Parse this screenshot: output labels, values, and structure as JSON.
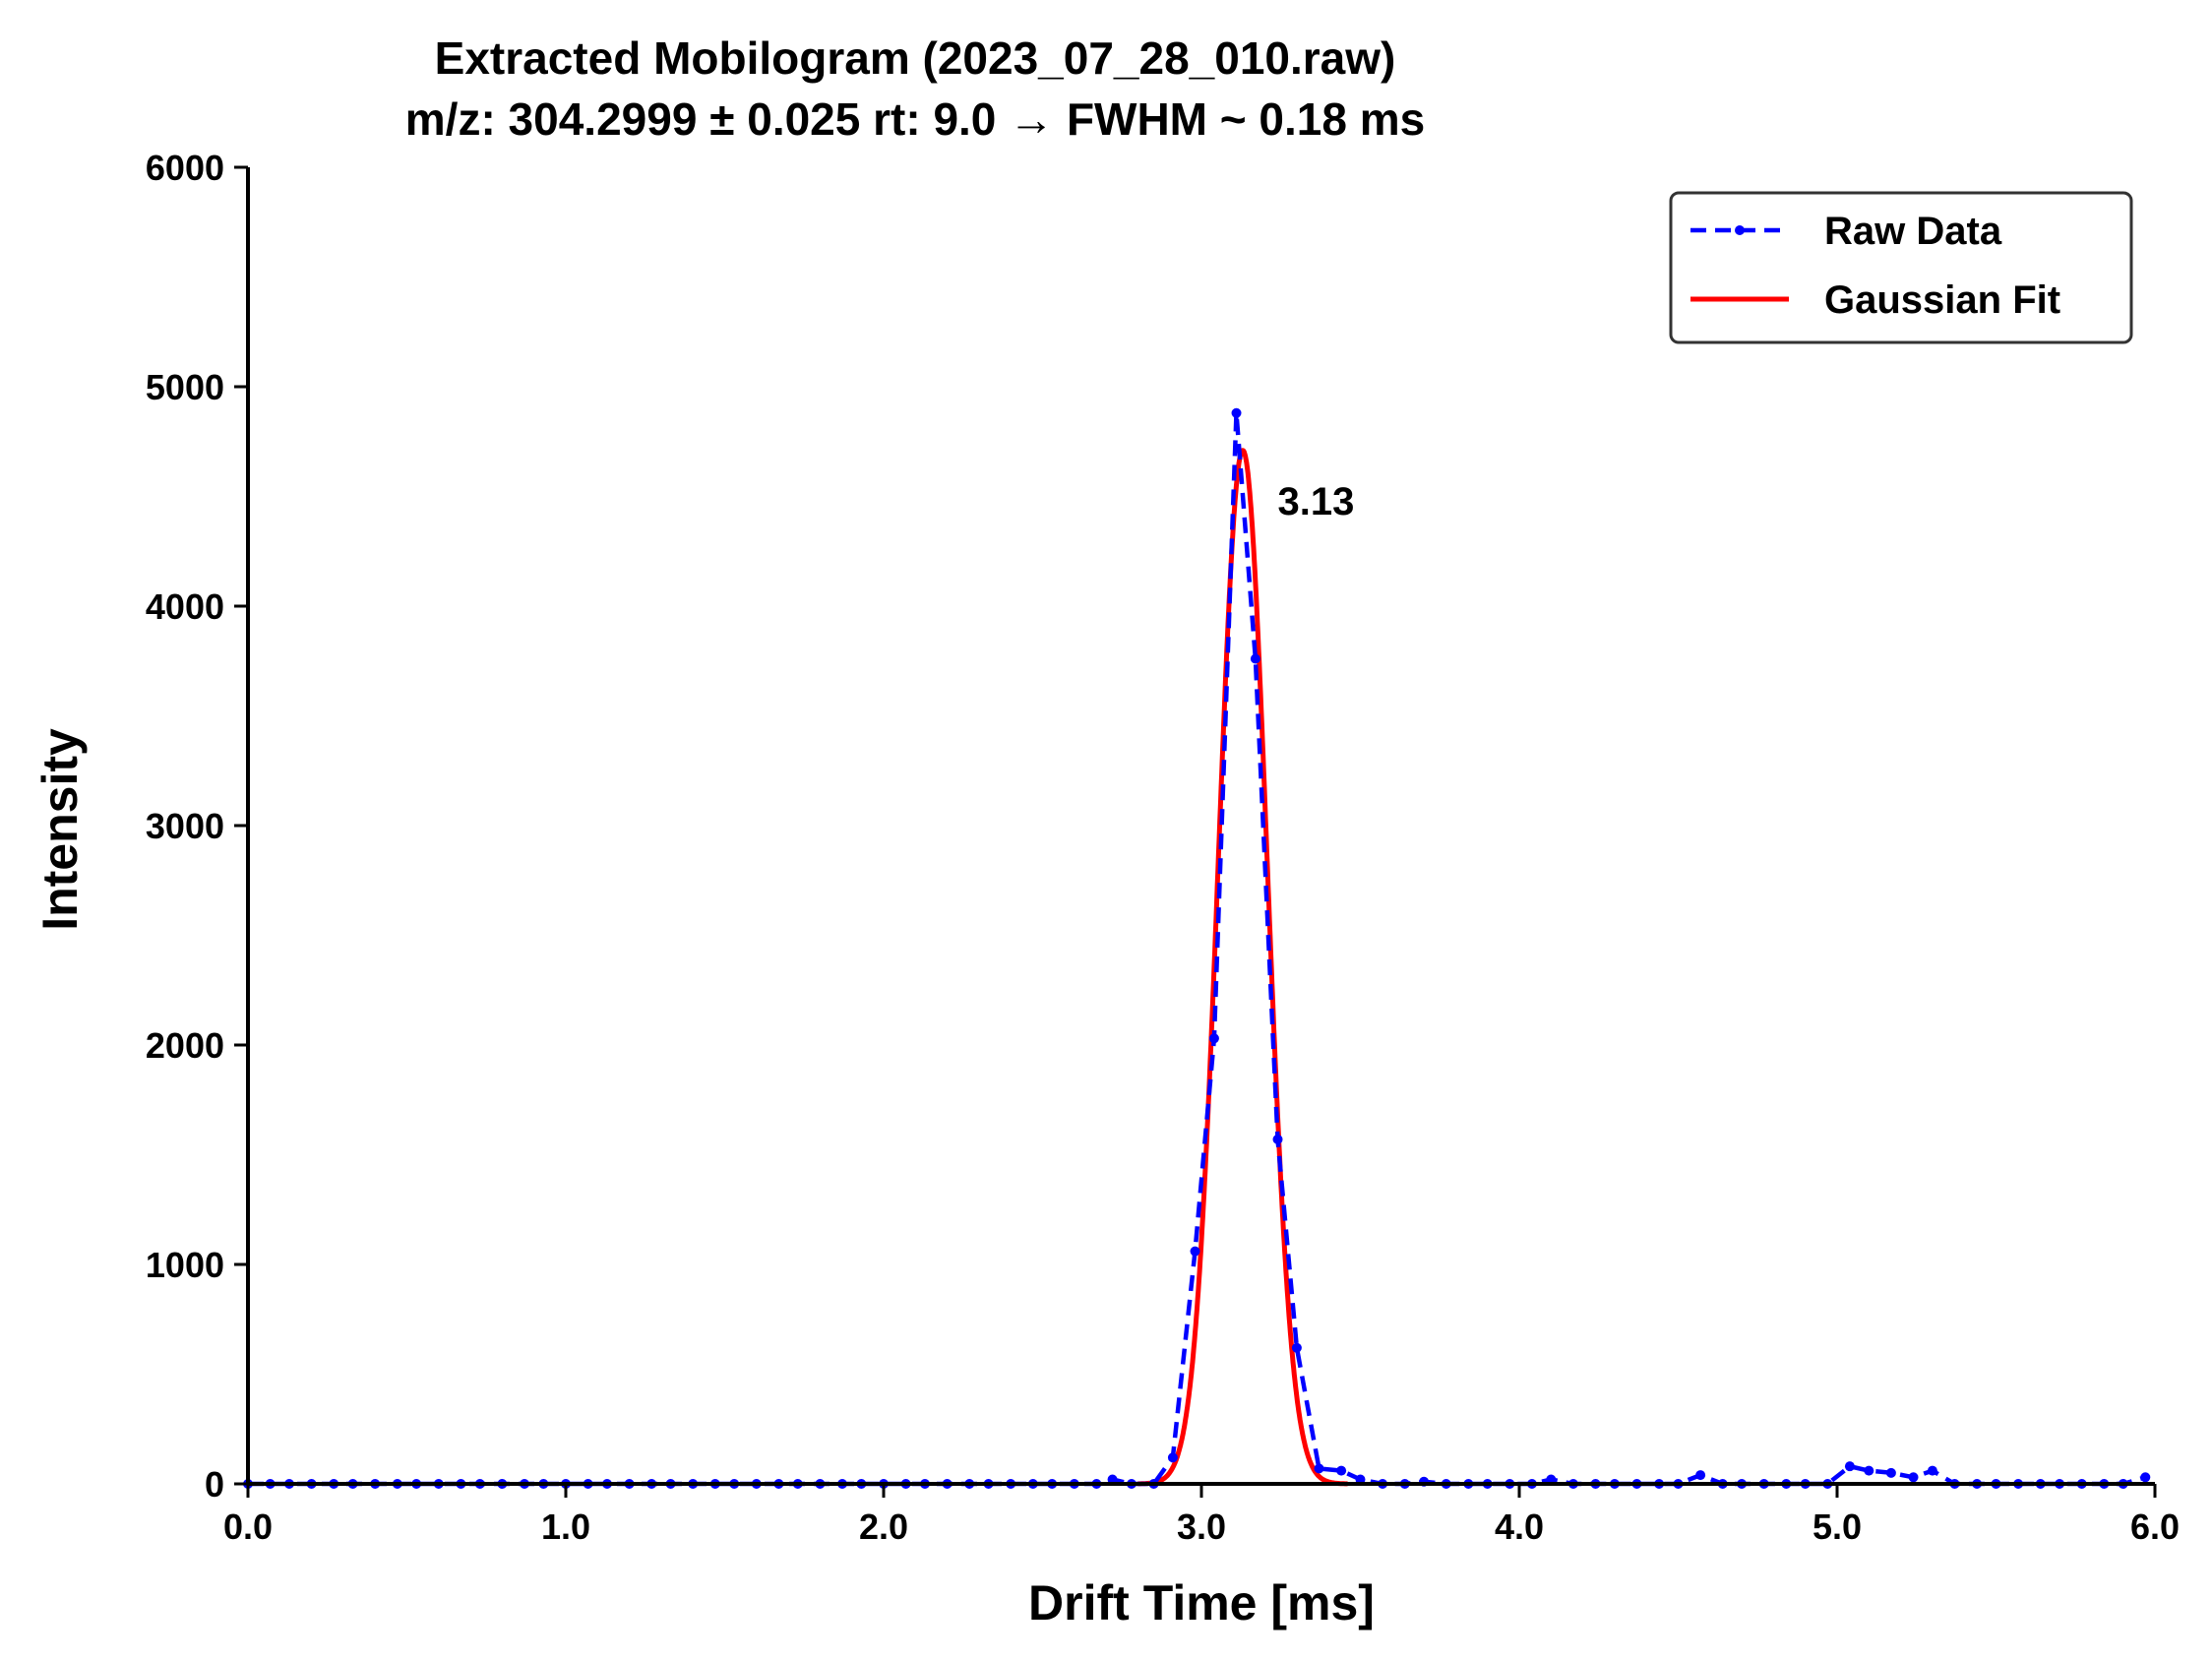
{
  "chart_data": {
    "type": "line",
    "title": "Extracted Mobilogram (2023_07_28_010.raw)",
    "subtitle": "m/z: 304.2999 ± 0.025 rt: 9.0 → FWHM ~ 0.18 ms",
    "xlabel": "Drift Time [ms]",
    "ylabel": "Intensity",
    "xlim": [
      0,
      6
    ],
    "ylim": [
      0,
      6000
    ],
    "x_ticks": [
      0,
      1,
      2,
      3,
      4,
      5,
      6
    ],
    "x_tick_labels": [
      "0.0",
      "1.0",
      "2.0",
      "3.0",
      "4.0",
      "5.0",
      "6.0"
    ],
    "y_ticks": [
      0,
      1000,
      2000,
      3000,
      4000,
      5000,
      6000
    ],
    "y_tick_labels": [
      "0",
      "1000",
      "2000",
      "3000",
      "4000",
      "5000",
      "6000"
    ],
    "grid": false,
    "legend_position": "top-right",
    "annotation": {
      "text": "3.13",
      "x": 3.24,
      "y": 4480
    },
    "series": [
      {
        "name": "Raw Data",
        "style": "dashed-dots",
        "color": "#0000ff",
        "x": [
          0.0,
          0.07,
          0.13,
          0.2,
          0.27,
          0.33,
          0.4,
          0.47,
          0.53,
          0.6,
          0.67,
          0.73,
          0.8,
          0.87,
          0.93,
          1.0,
          1.07,
          1.13,
          1.2,
          1.27,
          1.33,
          1.4,
          1.47,
          1.53,
          1.6,
          1.67,
          1.73,
          1.8,
          1.87,
          1.93,
          2.0,
          2.07,
          2.13,
          2.2,
          2.27,
          2.33,
          2.4,
          2.47,
          2.53,
          2.6,
          2.67,
          2.72,
          2.78,
          2.85,
          2.91,
          2.98,
          3.04,
          3.11,
          3.17,
          3.24,
          3.3,
          3.37,
          3.44,
          3.5,
          3.57,
          3.64,
          3.7,
          3.77,
          3.84,
          3.9,
          3.97,
          4.04,
          4.1,
          4.17,
          4.24,
          4.3,
          4.37,
          4.44,
          4.5,
          4.57,
          4.64,
          4.7,
          4.77,
          4.84,
          4.9,
          4.97,
          5.04,
          5.1,
          5.17,
          5.24,
          5.3,
          5.37,
          5.44,
          5.5,
          5.57,
          5.64,
          5.7,
          5.77,
          5.84,
          5.9,
          5.97
        ],
        "y": [
          0,
          0,
          0,
          0,
          0,
          0,
          0,
          0,
          0,
          0,
          0,
          0,
          0,
          0,
          0,
          0,
          0,
          0,
          0,
          0,
          0,
          0,
          0,
          0,
          0,
          0,
          0,
          0,
          0,
          0,
          0,
          0,
          0,
          0,
          0,
          0,
          0,
          0,
          0,
          0,
          0,
          20,
          0,
          0,
          120,
          1060,
          2030,
          4880,
          3760,
          1570,
          620,
          70,
          60,
          20,
          0,
          0,
          10,
          0,
          0,
          0,
          0,
          0,
          20,
          0,
          0,
          0,
          0,
          0,
          0,
          40,
          0,
          0,
          0,
          0,
          0,
          0,
          80,
          60,
          50,
          30,
          60,
          0,
          0,
          0,
          0,
          0,
          0,
          0,
          0,
          0,
          30
        ]
      },
      {
        "name": "Gaussian Fit",
        "style": "solid",
        "color": "#ff0000",
        "amplitude": 4710,
        "center": 3.13,
        "fwhm": 0.18
      }
    ]
  }
}
